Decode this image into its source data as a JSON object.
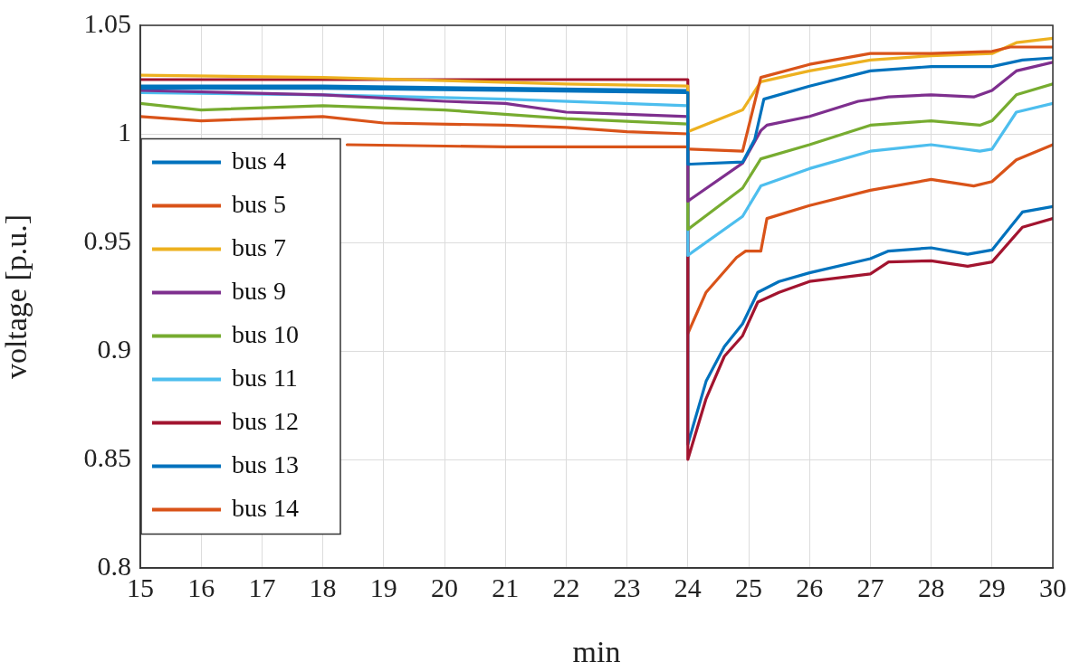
{
  "chart_data": {
    "type": "line",
    "xlabel": "min",
    "ylabel": "voltage [p.u.]",
    "xlim": [
      15,
      30
    ],
    "ylim": [
      0.8,
      1.05
    ],
    "xticks": [
      15,
      16,
      17,
      18,
      19,
      20,
      21,
      22,
      23,
      24,
      25,
      26,
      27,
      28,
      29,
      30
    ],
    "yticks": [
      0.8,
      0.85,
      0.9,
      0.95,
      1,
      1.05
    ],
    "grid": true,
    "legend": "left",
    "marker": "none",
    "line_style": "solid",
    "series": [
      {
        "name": "bus 4",
        "color": "#0072bd",
        "x": [
          15,
          18,
          21,
          24,
          24,
          24.9,
          25.1,
          25.25,
          26,
          27,
          28,
          29,
          29.5,
          30
        ],
        "values": [
          1.021,
          1.021,
          1.02,
          1.019,
          0.986,
          0.987,
          0.9975,
          1.016,
          1.022,
          1.029,
          1.031,
          1.031,
          1.034,
          1.035
        ]
      },
      {
        "name": "bus 5",
        "color": "#d95319",
        "x": [
          18.4,
          21,
          24,
          24,
          24.9,
          25.2,
          26,
          27,
          28,
          29,
          29.3,
          30
        ],
        "values": [
          0.995,
          0.994,
          0.994,
          0.993,
          0.992,
          1.026,
          1.032,
          1.037,
          1.037,
          1.038,
          1.04,
          1.04
        ]
      },
      {
        "name": "bus 7",
        "color": "#edb120",
        "x": [
          15,
          18,
          22,
          24,
          24,
          24.9,
          25.2,
          26,
          27,
          28,
          29,
          29.4,
          30
        ],
        "values": [
          1.027,
          1.026,
          1.023,
          1.022,
          1.001,
          1.011,
          1.024,
          1.029,
          1.034,
          1.036,
          1.037,
          1.042,
          1.044
        ]
      },
      {
        "name": "bus 9",
        "color": "#7e2f8e",
        "x": [
          15,
          18,
          20,
          21,
          22,
          23,
          24,
          24,
          24.9,
          25.2,
          25.3,
          26,
          26.8,
          27.3,
          28,
          28.7,
          29,
          29.4,
          30
        ],
        "values": [
          1.02,
          1.018,
          1.015,
          1.014,
          1.01,
          1.009,
          1.008,
          0.969,
          0.9865,
          1.0015,
          1.004,
          1.008,
          1.015,
          1.017,
          1.018,
          1.017,
          1.02,
          1.029,
          1.033
        ]
      },
      {
        "name": "bus 10",
        "color": "#77ac30",
        "x": [
          15,
          16,
          18,
          20,
          22,
          24,
          24,
          24.9,
          25.2,
          26,
          27,
          28,
          28.8,
          29,
          29.4,
          30
        ],
        "values": [
          1.014,
          1.011,
          1.013,
          1.011,
          1.007,
          1.0045,
          0.956,
          0.975,
          0.9885,
          0.995,
          1.004,
          1.006,
          1.004,
          1.006,
          1.018,
          1.023
        ]
      },
      {
        "name": "bus 11",
        "color": "#4dbeee",
        "x": [
          15,
          18,
          21,
          24,
          24,
          24.9,
          25.2,
          26,
          27,
          28,
          28.8,
          29,
          29.4,
          30
        ],
        "values": [
          1.019,
          1.018,
          1.016,
          1.013,
          0.944,
          0.962,
          0.976,
          0.984,
          0.992,
          0.995,
          0.992,
          0.993,
          1.01,
          1.014
        ]
      },
      {
        "name": "bus 12",
        "color": "#a2142f",
        "x": [
          15,
          18,
          21,
          24,
          24,
          24.3,
          24.6,
          24.9,
          25.15,
          25.5,
          26,
          27,
          27.3,
          28,
          28.6,
          29,
          29.5,
          30
        ],
        "values": [
          1.025,
          1.025,
          1.025,
          1.025,
          0.85,
          0.878,
          0.8975,
          0.907,
          0.9225,
          0.927,
          0.932,
          0.9355,
          0.941,
          0.9415,
          0.939,
          0.941,
          0.957,
          0.961
        ]
      },
      {
        "name": "bus 13",
        "color": "#0072bd",
        "x": [
          15,
          18,
          21,
          24,
          24,
          24.3,
          24.6,
          24.9,
          25.15,
          25.5,
          26,
          27,
          27.3,
          28,
          28.6,
          29,
          29.5,
          30
        ],
        "values": [
          1.022,
          1.022,
          1.021,
          1.02,
          0.857,
          0.886,
          0.902,
          0.9125,
          0.927,
          0.932,
          0.936,
          0.9425,
          0.946,
          0.9475,
          0.9445,
          0.9465,
          0.964,
          0.9665
        ]
      },
      {
        "name": "bus 14",
        "color": "#d95319",
        "x": [
          15,
          16,
          18,
          19,
          21,
          22,
          23,
          24,
          24,
          24.3,
          24.8,
          24.95,
          25.2,
          25.3,
          26,
          27,
          28,
          28.7,
          29,
          29.4,
          30
        ],
        "values": [
          1.008,
          1.006,
          1.008,
          1.005,
          1.004,
          1.003,
          1.001,
          1.0,
          0.908,
          0.927,
          0.943,
          0.946,
          0.946,
          0.961,
          0.967,
          0.974,
          0.979,
          0.976,
          0.978,
          0.988,
          0.995
        ]
      }
    ]
  }
}
